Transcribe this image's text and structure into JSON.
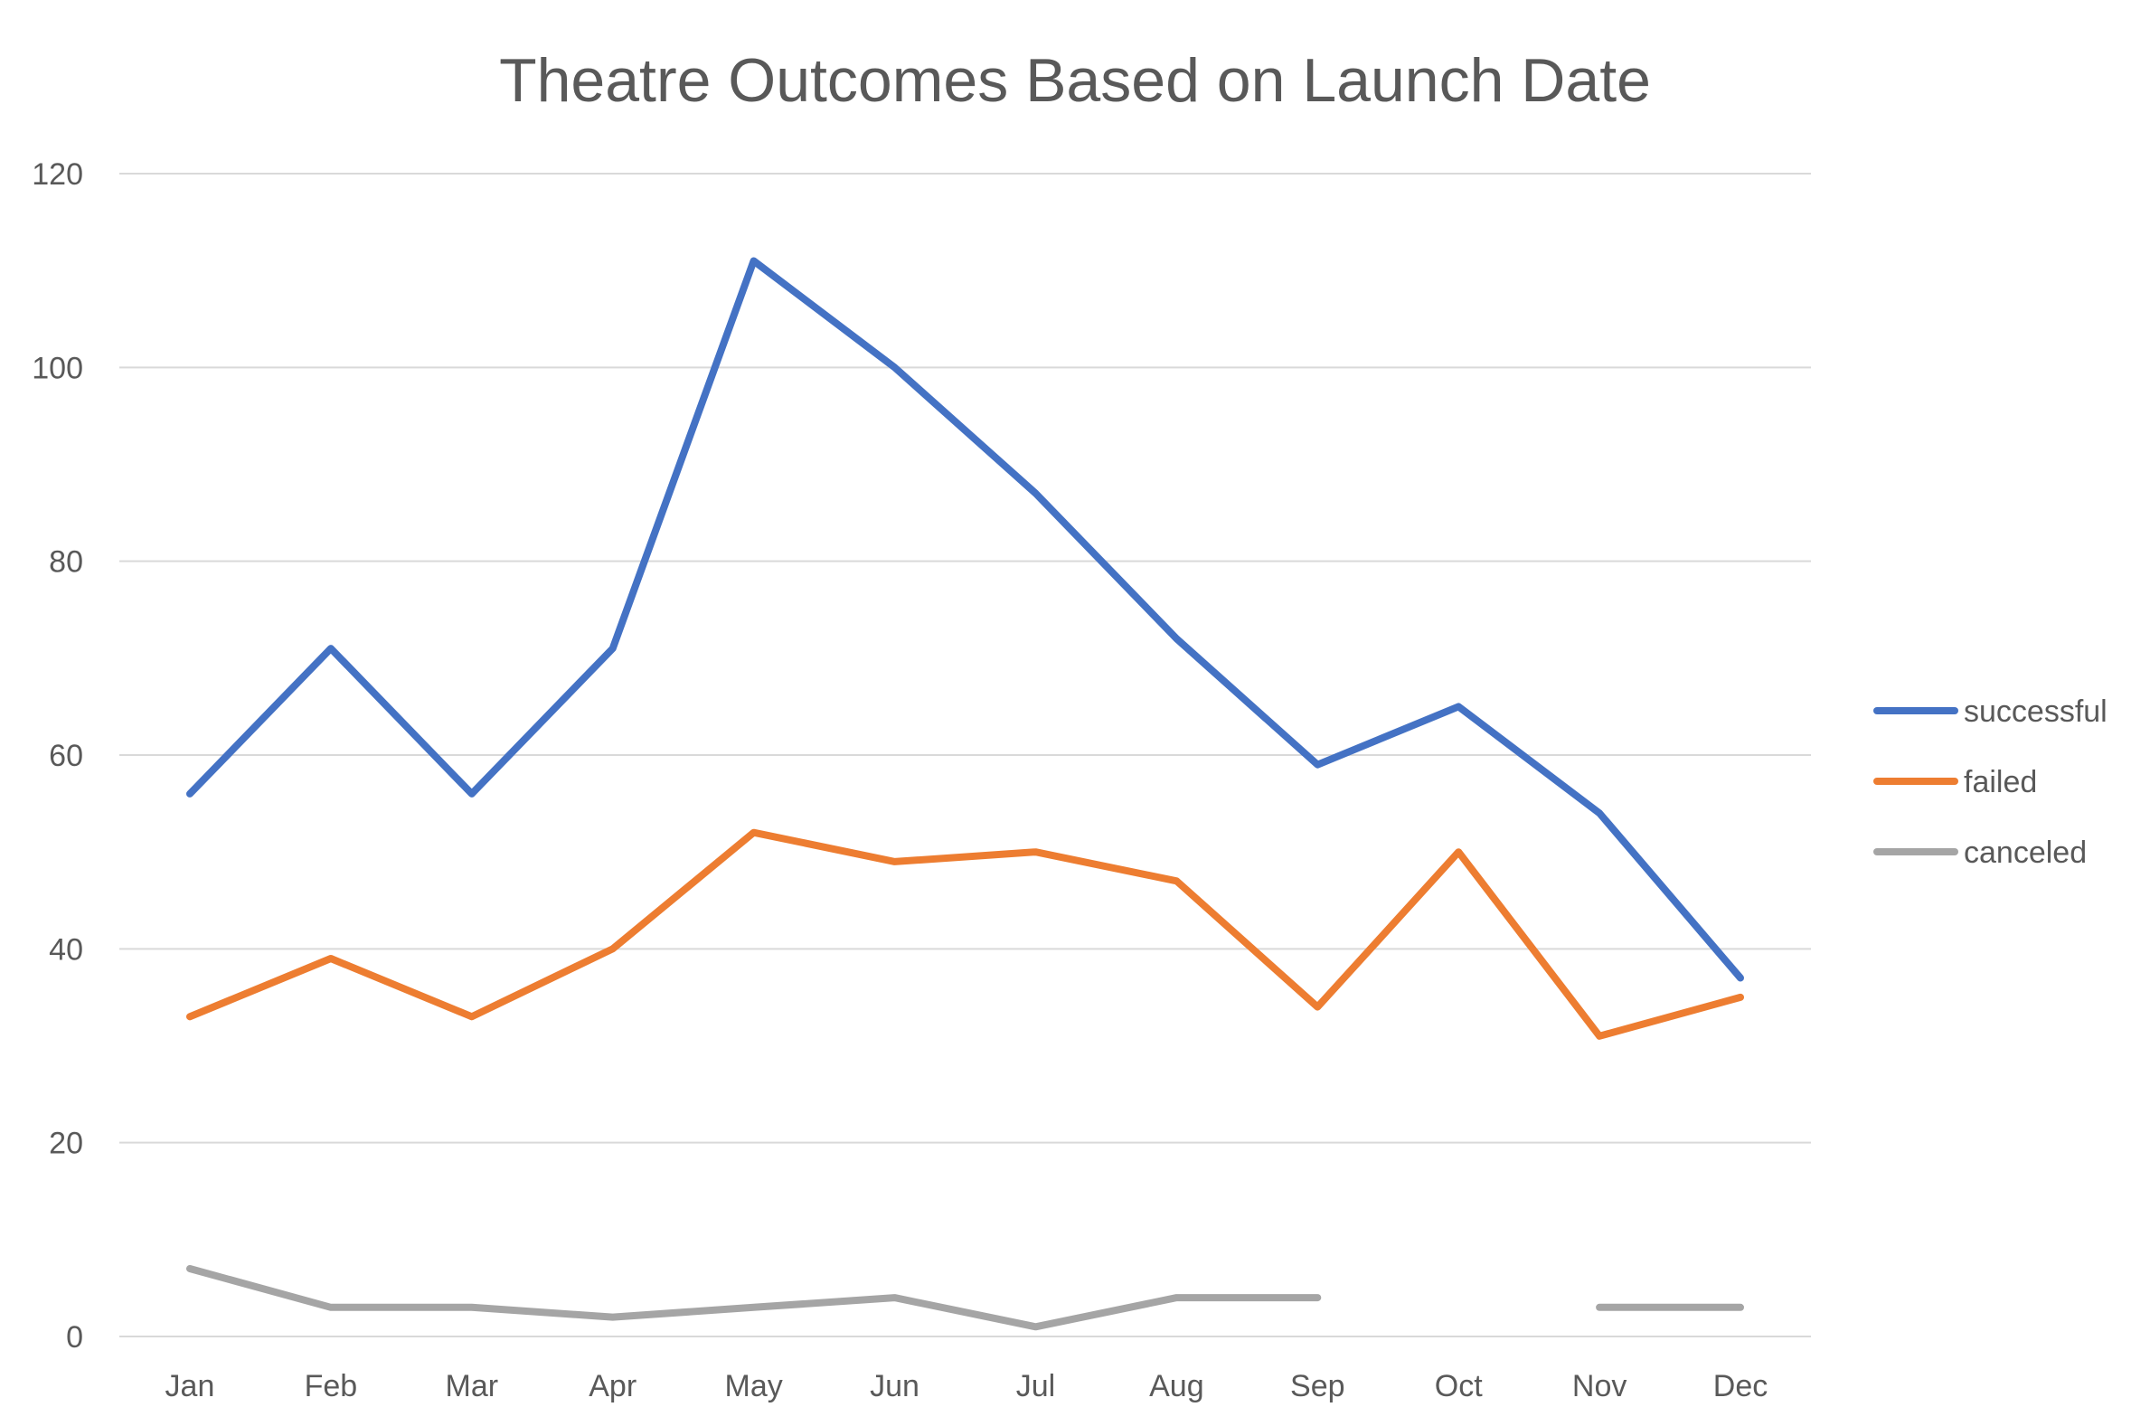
{
  "chart_data": {
    "type": "line",
    "title": "Theatre Outcomes Based on Launch Date",
    "xlabel": "",
    "ylabel": "",
    "categories": [
      "Jan",
      "Feb",
      "Mar",
      "Apr",
      "May",
      "Jun",
      "Jul",
      "Aug",
      "Sep",
      "Oct",
      "Nov",
      "Dec"
    ],
    "ylim": [
      0,
      120
    ],
    "yticks": [
      "0",
      "20",
      "40",
      "60",
      "80",
      "100",
      "120"
    ],
    "grid": true,
    "legend_position": "right",
    "series": [
      {
        "name": "successful",
        "color": "#4472c4",
        "values": [
          56,
          71,
          56,
          71,
          111,
          100,
          87,
          72,
          59,
          65,
          54,
          37
        ]
      },
      {
        "name": "failed",
        "color": "#ed7d31",
        "values": [
          33,
          39,
          33,
          40,
          52,
          49,
          50,
          47,
          34,
          50,
          31,
          35
        ]
      },
      {
        "name": "canceled",
        "color": "#a5a5a5",
        "values": [
          7,
          3,
          3,
          2,
          3,
          4,
          1,
          4,
          4,
          null,
          3,
          3
        ]
      }
    ]
  }
}
